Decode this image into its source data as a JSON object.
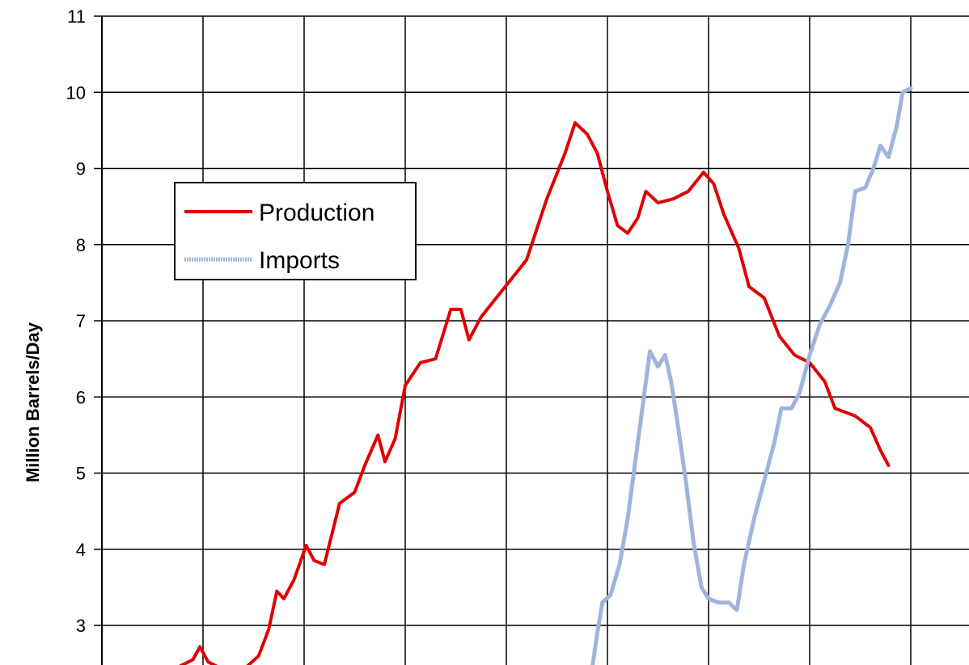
{
  "chart_data": {
    "type": "line",
    "ylabel": "Million Barrels/Day",
    "ylim": [
      2.5,
      11
    ],
    "y_ticks": [
      "3",
      "4",
      "5",
      "6",
      "7",
      "8",
      "9",
      "10",
      "11"
    ],
    "grid": true,
    "legend_position": "upper-left",
    "x_grid_count": 9,
    "series": [
      {
        "name": "Production",
        "color": "#e00000",
        "points": [
          [
            0.75,
            2.45
          ],
          [
            0.9,
            2.55
          ],
          [
            0.97,
            2.72
          ],
          [
            1.05,
            2.52
          ],
          [
            1.2,
            2.42
          ],
          [
            1.4,
            2.42
          ],
          [
            1.55,
            2.6
          ],
          [
            1.65,
            2.95
          ],
          [
            1.73,
            3.45
          ],
          [
            1.8,
            3.35
          ],
          [
            1.9,
            3.6
          ],
          [
            2.02,
            4.05
          ],
          [
            2.1,
            3.85
          ],
          [
            2.2,
            3.8
          ],
          [
            2.35,
            4.6
          ],
          [
            2.5,
            4.75
          ],
          [
            2.6,
            5.1
          ],
          [
            2.73,
            5.5
          ],
          [
            2.8,
            5.15
          ],
          [
            2.9,
            5.45
          ],
          [
            3.0,
            6.15
          ],
          [
            3.15,
            6.45
          ],
          [
            3.3,
            6.5
          ],
          [
            3.45,
            7.15
          ],
          [
            3.55,
            7.15
          ],
          [
            3.63,
            6.75
          ],
          [
            3.75,
            7.05
          ],
          [
            3.9,
            7.3
          ],
          [
            4.05,
            7.55
          ],
          [
            4.2,
            7.8
          ],
          [
            4.4,
            8.6
          ],
          [
            4.58,
            9.2
          ],
          [
            4.68,
            9.6
          ],
          [
            4.8,
            9.45
          ],
          [
            4.9,
            9.2
          ],
          [
            5.0,
            8.7
          ],
          [
            5.1,
            8.25
          ],
          [
            5.2,
            8.15
          ],
          [
            5.3,
            8.35
          ],
          [
            5.38,
            8.7
          ],
          [
            5.5,
            8.55
          ],
          [
            5.65,
            8.6
          ],
          [
            5.8,
            8.7
          ],
          [
            5.95,
            8.95
          ],
          [
            6.05,
            8.8
          ],
          [
            6.15,
            8.4
          ],
          [
            6.3,
            7.95
          ],
          [
            6.4,
            7.45
          ],
          [
            6.55,
            7.3
          ],
          [
            6.7,
            6.8
          ],
          [
            6.85,
            6.55
          ],
          [
            7.0,
            6.45
          ],
          [
            7.15,
            6.2
          ],
          [
            7.25,
            5.85
          ],
          [
            7.45,
            5.75
          ],
          [
            7.6,
            5.6
          ],
          [
            7.7,
            5.3
          ],
          [
            7.78,
            5.1
          ]
        ]
      },
      {
        "name": "Imports",
        "color": "#9fb4dc",
        "points": [
          [
            4.85,
            2.45
          ],
          [
            4.9,
            2.9
          ],
          [
            4.95,
            3.3
          ],
          [
            5.03,
            3.4
          ],
          [
            5.12,
            3.8
          ],
          [
            5.2,
            4.4
          ],
          [
            5.28,
            5.2
          ],
          [
            5.35,
            5.9
          ],
          [
            5.42,
            6.6
          ],
          [
            5.5,
            6.4
          ],
          [
            5.57,
            6.55
          ],
          [
            5.63,
            6.2
          ],
          [
            5.7,
            5.6
          ],
          [
            5.78,
            4.85
          ],
          [
            5.85,
            4.1
          ],
          [
            5.93,
            3.5
          ],
          [
            6.0,
            3.35
          ],
          [
            6.1,
            3.3
          ],
          [
            6.2,
            3.3
          ],
          [
            6.28,
            3.2
          ],
          [
            6.35,
            3.8
          ],
          [
            6.45,
            4.4
          ],
          [
            6.55,
            4.9
          ],
          [
            6.65,
            5.4
          ],
          [
            6.72,
            5.85
          ],
          [
            6.82,
            5.85
          ],
          [
            6.9,
            6.05
          ],
          [
            7.0,
            6.55
          ],
          [
            7.1,
            6.95
          ],
          [
            7.2,
            7.2
          ],
          [
            7.3,
            7.5
          ],
          [
            7.38,
            8.0
          ],
          [
            7.45,
            8.7
          ],
          [
            7.55,
            8.75
          ],
          [
            7.63,
            9.0
          ],
          [
            7.7,
            9.3
          ],
          [
            7.78,
            9.15
          ],
          [
            7.86,
            9.55
          ],
          [
            7.92,
            10.0
          ],
          [
            8.0,
            10.05
          ]
        ]
      }
    ]
  }
}
